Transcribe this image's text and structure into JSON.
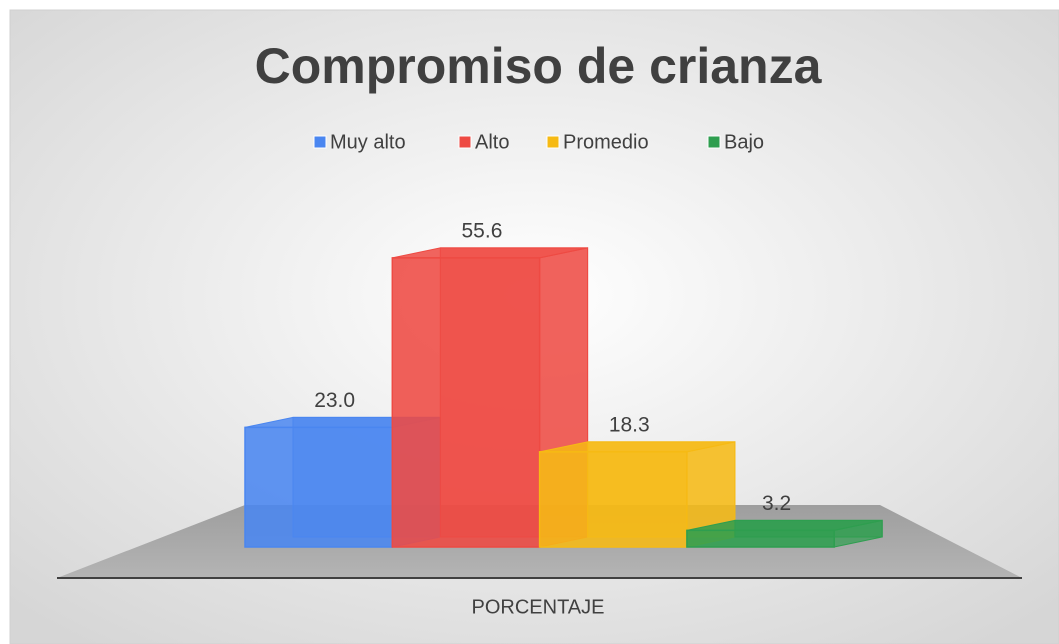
{
  "chart_data": {
    "type": "bar3d",
    "title": "Compromiso de crianza",
    "categories": [
      "PORCENTAJE"
    ],
    "series": [
      {
        "name": "Muy alto",
        "color": "#4a86f0",
        "values": [
          23.0
        ],
        "value_labels": [
          "23.0"
        ]
      },
      {
        "name": "Alto",
        "color": "#ee4a43",
        "values": [
          55.6
        ],
        "value_labels": [
          "55.6"
        ]
      },
      {
        "name": "Promedio",
        "color": "#f6ba14",
        "values": [
          18.3
        ],
        "value_labels": [
          "18.3"
        ]
      },
      {
        "name": "Bajo",
        "color": "#2e9e4f",
        "values": [
          3.2
        ],
        "value_labels": [
          "3.2"
        ]
      }
    ],
    "ylim": [
      0,
      60
    ],
    "legend": "top"
  }
}
